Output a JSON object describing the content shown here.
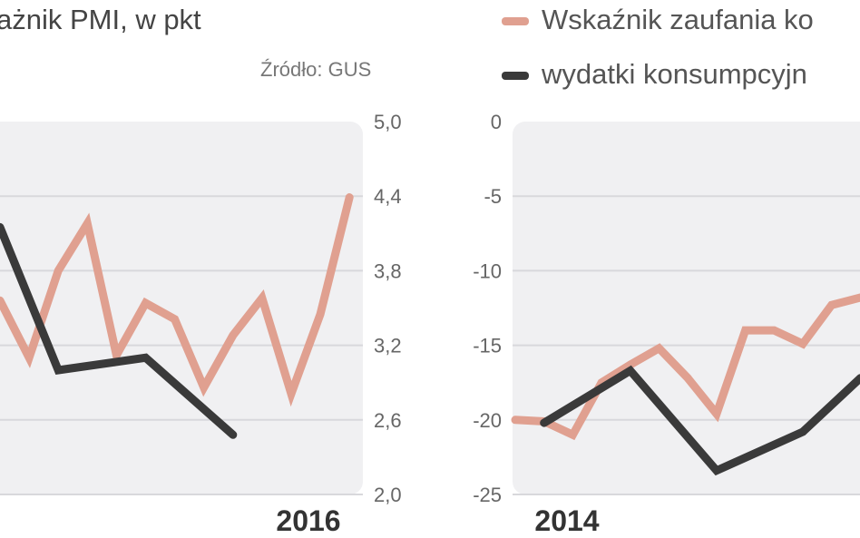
{
  "header": {
    "title": "ażnik PMI, w pkt",
    "source": "Źródło: GUS"
  },
  "legend": [
    {
      "label": "Wskaźnik zaufania ko",
      "color": "#e0a090"
    },
    {
      "label": "wydatki konsumpcyjn",
      "color": "#3a3a3a"
    }
  ],
  "chart_data": [
    {
      "type": "line",
      "title": "ażnik PMI, w pkt",
      "ylim": [
        2.0,
        5.0
      ],
      "yticks": [
        "5,0",
        "4,4",
        "3,8",
        "3,2",
        "2,6",
        "2,0"
      ],
      "yaxis": "right",
      "xtick_labels": [
        "2016"
      ],
      "grid": true,
      "series": [
        {
          "color": "#e0a090",
          "values": [
            3.56,
            3.1,
            3.8,
            4.18,
            3.12,
            3.54,
            3.41,
            2.86,
            3.28,
            3.58,
            2.81,
            3.45,
            4.39
          ]
        },
        {
          "color": "#3a3a3a",
          "values": [
            4.15,
            null,
            3.0,
            null,
            null,
            3.1,
            null,
            null,
            2.48,
            null,
            null,
            null,
            null
          ]
        }
      ]
    },
    {
      "type": "line",
      "ylim": [
        -25,
        0
      ],
      "yticks": [
        "0",
        "-5",
        "-10",
        "-15",
        "-20",
        "-25"
      ],
      "yaxis": "left",
      "xtick_labels": [
        "2014"
      ],
      "grid": true,
      "series": [
        {
          "name": "Wskaźnik zaufania ko",
          "color": "#e0a090",
          "values": [
            -20,
            -20.1,
            -21,
            -17.5,
            -16.3,
            -15.2,
            -17.2,
            -19.6,
            -14,
            -14,
            -14.9,
            -12.3,
            -11.8
          ]
        },
        {
          "name": "wydatki konsumpcyjn",
          "color": "#3a3a3a",
          "values": [
            null,
            -20.2,
            null,
            null,
            -16.7,
            null,
            null,
            -23.4,
            null,
            null,
            -20.8,
            null,
            -17.2
          ]
        }
      ]
    }
  ]
}
